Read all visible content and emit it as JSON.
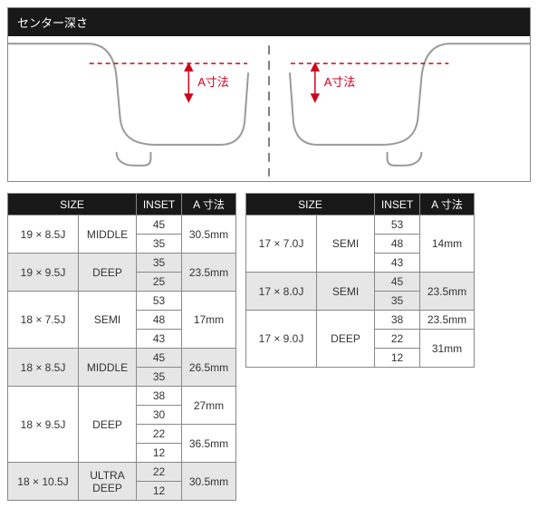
{
  "diagram": {
    "title": "センター深さ",
    "label_a": "A寸法",
    "label_color": "#d0021b",
    "dash_color": "#d0021b",
    "centerline_color": "#555555",
    "outline_color": "#999999"
  },
  "headers": {
    "size": "SIZE",
    "inset": "INSET",
    "dim": "A 寸法"
  },
  "table_left": {
    "rows": [
      {
        "size": "19 × 8.5J",
        "type": "MIDDLE",
        "shade": false,
        "insets": [
          "45",
          "35"
        ],
        "dims": [
          {
            "span": 2,
            "v": "30.5mm"
          }
        ]
      },
      {
        "size": "19 × 9.5J",
        "type": "DEEP",
        "shade": true,
        "insets": [
          "35",
          "25"
        ],
        "dims": [
          {
            "span": 2,
            "v": "23.5mm"
          }
        ]
      },
      {
        "size": "18 × 7.5J",
        "type": "SEMI",
        "shade": false,
        "insets": [
          "53",
          "48",
          "43"
        ],
        "dims": [
          {
            "span": 3,
            "v": "17mm"
          }
        ]
      },
      {
        "size": "18 × 8.5J",
        "type": "MIDDLE",
        "shade": true,
        "insets": [
          "45",
          "35"
        ],
        "dims": [
          {
            "span": 2,
            "v": "26.5mm"
          }
        ]
      },
      {
        "size": "18 × 9.5J",
        "type": "DEEP",
        "shade": false,
        "insets": [
          "38",
          "30",
          "22",
          "12"
        ],
        "dims": [
          {
            "span": 2,
            "v": "27mm"
          },
          {
            "span": 2,
            "v": "36.5mm"
          }
        ]
      },
      {
        "size": "18 × 10.5J",
        "type": "ULTRA DEEP",
        "shade": true,
        "insets": [
          "22",
          "12"
        ],
        "dims": [
          {
            "span": 2,
            "v": "30.5mm"
          }
        ]
      }
    ]
  },
  "table_right": {
    "rows": [
      {
        "size": "17 × 7.0J",
        "type": "SEMI",
        "shade": false,
        "insets": [
          "53",
          "48",
          "43"
        ],
        "dims": [
          {
            "span": 3,
            "v": "14mm"
          }
        ]
      },
      {
        "size": "17 × 8.0J",
        "type": "SEMI",
        "shade": true,
        "insets": [
          "45",
          "35"
        ],
        "dims": [
          {
            "span": 2,
            "v": "23.5mm"
          }
        ]
      },
      {
        "size": "17 × 9.0J",
        "type": "DEEP",
        "shade": false,
        "insets": [
          "38",
          "22",
          "12"
        ],
        "dims": [
          {
            "span": 1,
            "v": "23.5mm"
          },
          {
            "span": 2,
            "v": "31mm"
          }
        ]
      }
    ]
  }
}
